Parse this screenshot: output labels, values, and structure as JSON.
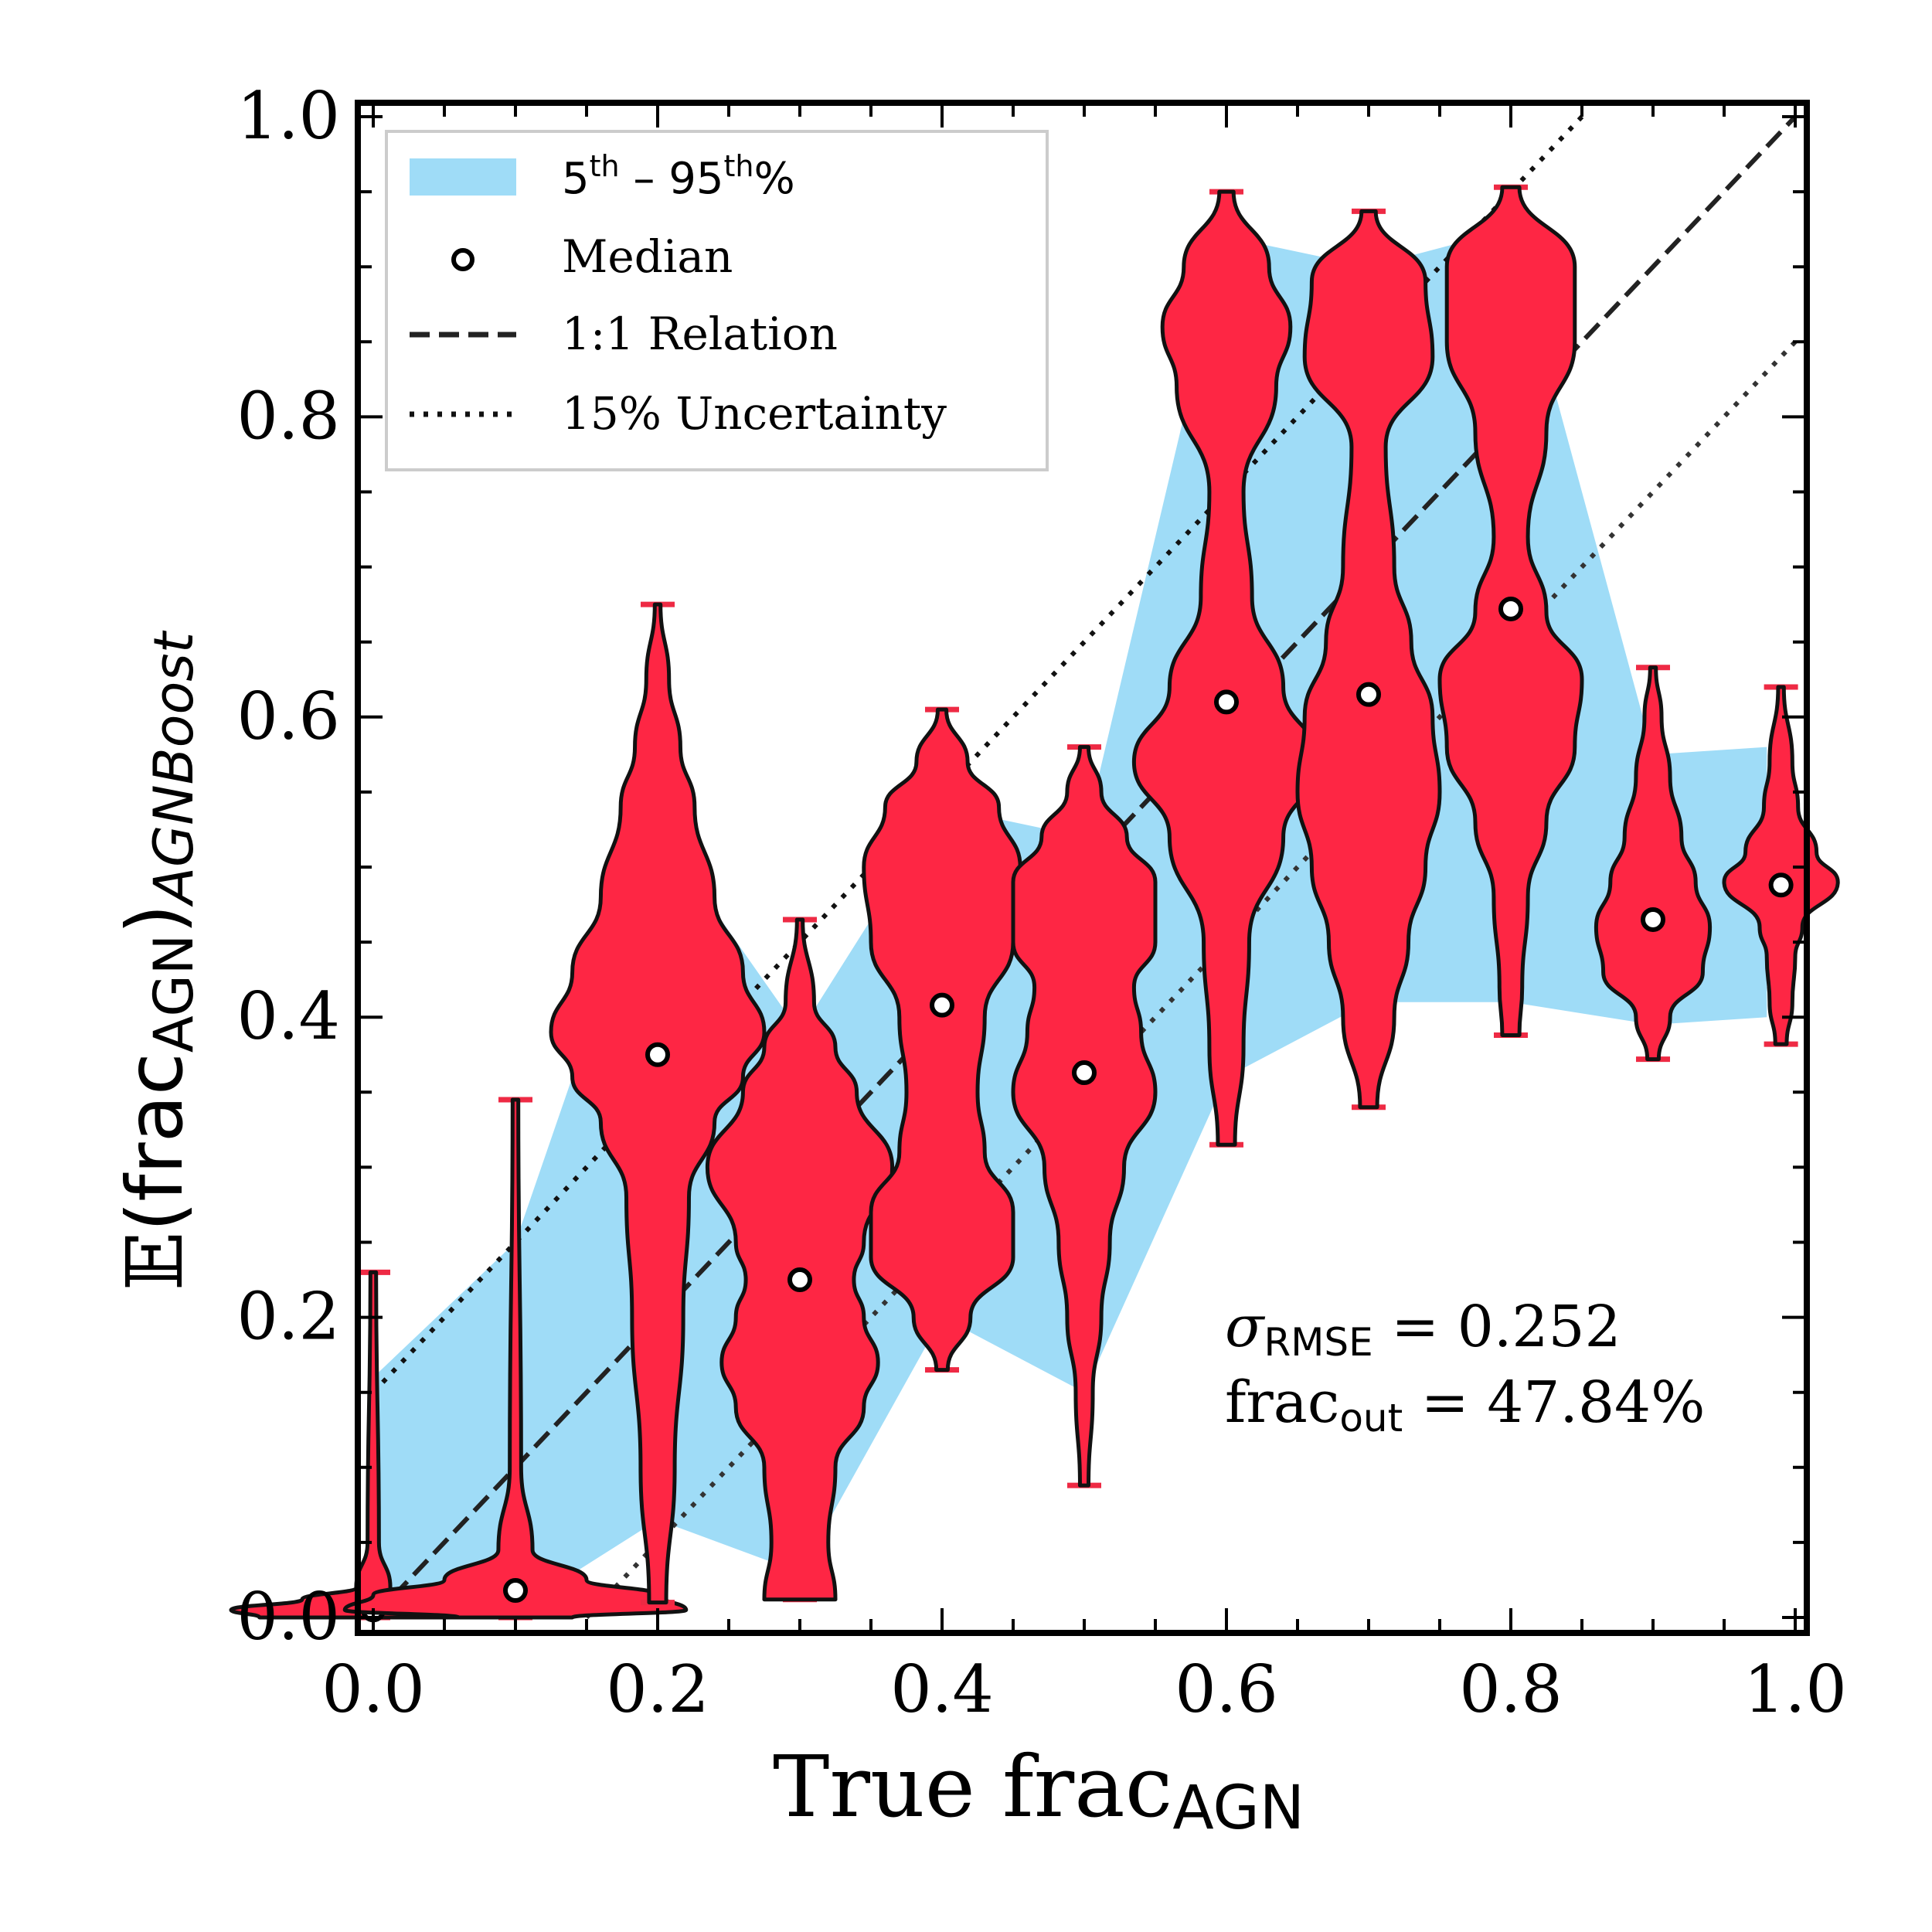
{
  "chart_data": {
    "type": "violin",
    "xlabel": {
      "main": "True frac",
      "sub": "AGN"
    },
    "ylabel": {
      "prefix": "𝔼",
      "open": "(frac",
      "sub1": "AGN",
      "close": ")",
      "sub2": "AGNBoost"
    },
    "xlim": [
      0.0,
      1.0
    ],
    "ylim": [
      0.0,
      1.0
    ],
    "x_ticks": [
      {
        "value": 0.0,
        "label": "0.0"
      },
      {
        "value": 0.2,
        "label": "0.2"
      },
      {
        "value": 0.4,
        "label": "0.4"
      },
      {
        "value": 0.6,
        "label": "0.6"
      },
      {
        "value": 0.8,
        "label": "0.8"
      },
      {
        "value": 1.0,
        "label": "1.0"
      }
    ],
    "y_ticks": [
      {
        "value": 0.0,
        "label": "0.0"
      },
      {
        "value": 0.2,
        "label": "0.2"
      },
      {
        "value": 0.4,
        "label": "0.4"
      },
      {
        "value": 0.6,
        "label": "0.6"
      },
      {
        "value": 0.8,
        "label": "0.8"
      },
      {
        "value": 1.0,
        "label": "1.0"
      }
    ],
    "legend": {
      "placement": "top-left",
      "band": {
        "base": "5",
        "sup1": "th",
        "mid": " – 95",
        "sup2": "th",
        "end": "%"
      },
      "median": "Median",
      "relation": "1:1 Relation",
      "uncertainty": "15% Uncertainty"
    },
    "band_5_95": {
      "x": [
        0.0,
        0.1,
        0.2,
        0.3,
        0.4,
        0.5,
        0.6,
        0.7,
        0.8,
        0.9,
        0.98
      ],
      "lower": [
        0.005,
        0.005,
        0.065,
        0.03,
        0.2,
        0.15,
        0.36,
        0.41,
        0.41,
        0.395,
        0.4
      ],
      "upper": [
        0.16,
        0.25,
        0.525,
        0.39,
        0.54,
        0.52,
        0.92,
        0.9,
        0.925,
        0.575,
        0.58
      ]
    },
    "violins": [
      {
        "x": 0.0,
        "min": 0.0,
        "max": 0.23,
        "median": 0.005,
        "shape": [
          [
            0.0,
            0.08
          ],
          [
            0.005,
            0.1
          ],
          [
            0.012,
            0.05
          ],
          [
            0.02,
            0.012
          ],
          [
            0.05,
            0.004
          ],
          [
            0.23,
            0.002
          ]
        ]
      },
      {
        "x": 0.1,
        "min": 0.0,
        "max": 0.345,
        "median": 0.018,
        "shape": [
          [
            0.0,
            0.04
          ],
          [
            0.005,
            0.12
          ],
          [
            0.015,
            0.1
          ],
          [
            0.025,
            0.05
          ],
          [
            0.045,
            0.012
          ],
          [
            0.1,
            0.004
          ],
          [
            0.345,
            0.002
          ]
        ]
      },
      {
        "x": 0.2,
        "min": 0.01,
        "max": 0.675,
        "median": 0.375,
        "shape": [
          [
            0.01,
            0.006
          ],
          [
            0.1,
            0.012
          ],
          [
            0.2,
            0.018
          ],
          [
            0.28,
            0.022
          ],
          [
            0.33,
            0.04
          ],
          [
            0.36,
            0.06
          ],
          [
            0.39,
            0.075
          ],
          [
            0.43,
            0.06
          ],
          [
            0.48,
            0.04
          ],
          [
            0.54,
            0.026
          ],
          [
            0.58,
            0.016
          ],
          [
            0.625,
            0.008
          ],
          [
            0.675,
            0.002
          ]
        ]
      },
      {
        "x": 0.3,
        "min": 0.012,
        "max": 0.465,
        "median": 0.225,
        "shape": [
          [
            0.012,
            0.025
          ],
          [
            0.05,
            0.02
          ],
          [
            0.1,
            0.025
          ],
          [
            0.14,
            0.045
          ],
          [
            0.17,
            0.055
          ],
          [
            0.2,
            0.045
          ],
          [
            0.225,
            0.038
          ],
          [
            0.25,
            0.045
          ],
          [
            0.3,
            0.065
          ],
          [
            0.35,
            0.04
          ],
          [
            0.38,
            0.025
          ],
          [
            0.41,
            0.01
          ],
          [
            0.465,
            0.002
          ]
        ]
      },
      {
        "x": 0.4,
        "min": 0.165,
        "max": 0.605,
        "median": 0.408,
        "shape": [
          [
            0.165,
            0.004
          ],
          [
            0.2,
            0.02
          ],
          [
            0.24,
            0.05
          ],
          [
            0.27,
            0.05
          ],
          [
            0.31,
            0.03
          ],
          [
            0.35,
            0.025
          ],
          [
            0.4,
            0.03
          ],
          [
            0.45,
            0.05
          ],
          [
            0.5,
            0.055
          ],
          [
            0.54,
            0.04
          ],
          [
            0.57,
            0.018
          ],
          [
            0.605,
            0.003
          ]
        ]
      },
      {
        "x": 0.5,
        "min": 0.088,
        "max": 0.58,
        "median": 0.363,
        "shape": [
          [
            0.088,
            0.003
          ],
          [
            0.15,
            0.006
          ],
          [
            0.2,
            0.012
          ],
          [
            0.25,
            0.018
          ],
          [
            0.3,
            0.028
          ],
          [
            0.35,
            0.05
          ],
          [
            0.39,
            0.04
          ],
          [
            0.42,
            0.035
          ],
          [
            0.45,
            0.05
          ],
          [
            0.49,
            0.05
          ],
          [
            0.52,
            0.03
          ],
          [
            0.55,
            0.012
          ],
          [
            0.58,
            0.003
          ]
        ]
      },
      {
        "x": 0.6,
        "min": 0.315,
        "max": 0.95,
        "median": 0.61,
        "shape": [
          [
            0.315,
            0.006
          ],
          [
            0.38,
            0.012
          ],
          [
            0.45,
            0.016
          ],
          [
            0.52,
            0.04
          ],
          [
            0.57,
            0.065
          ],
          [
            0.62,
            0.04
          ],
          [
            0.68,
            0.018
          ],
          [
            0.75,
            0.012
          ],
          [
            0.82,
            0.035
          ],
          [
            0.86,
            0.045
          ],
          [
            0.9,
            0.03
          ],
          [
            0.95,
            0.005
          ]
        ]
      },
      {
        "x": 0.7,
        "min": 0.34,
        "max": 0.937,
        "median": 0.615,
        "shape": [
          [
            0.34,
            0.006
          ],
          [
            0.4,
            0.018
          ],
          [
            0.45,
            0.028
          ],
          [
            0.5,
            0.04
          ],
          [
            0.55,
            0.05
          ],
          [
            0.6,
            0.045
          ],
          [
            0.65,
            0.03
          ],
          [
            0.7,
            0.018
          ],
          [
            0.78,
            0.012
          ],
          [
            0.84,
            0.045
          ],
          [
            0.89,
            0.04
          ],
          [
            0.937,
            0.005
          ]
        ]
      },
      {
        "x": 0.8,
        "min": 0.388,
        "max": 0.953,
        "median": 0.672,
        "shape": [
          [
            0.388,
            0.006
          ],
          [
            0.42,
            0.008
          ],
          [
            0.48,
            0.012
          ],
          [
            0.53,
            0.025
          ],
          [
            0.58,
            0.045
          ],
          [
            0.625,
            0.05
          ],
          [
            0.67,
            0.025
          ],
          [
            0.72,
            0.012
          ],
          [
            0.79,
            0.025
          ],
          [
            0.85,
            0.045
          ],
          [
            0.9,
            0.045
          ],
          [
            0.953,
            0.006
          ]
        ]
      },
      {
        "x": 0.9,
        "min": 0.372,
        "max": 0.633,
        "median": 0.465,
        "shape": [
          [
            0.372,
            0.004
          ],
          [
            0.4,
            0.012
          ],
          [
            0.43,
            0.035
          ],
          [
            0.46,
            0.04
          ],
          [
            0.49,
            0.03
          ],
          [
            0.52,
            0.02
          ],
          [
            0.56,
            0.012
          ],
          [
            0.6,
            0.006
          ],
          [
            0.633,
            0.002
          ]
        ]
      },
      {
        "x": 0.99,
        "min": 0.382,
        "max": 0.62,
        "median": 0.488,
        "shape": [
          [
            0.382,
            0.004
          ],
          [
            0.41,
            0.008
          ],
          [
            0.44,
            0.01
          ],
          [
            0.46,
            0.015
          ],
          [
            0.49,
            0.04
          ],
          [
            0.51,
            0.025
          ],
          [
            0.54,
            0.012
          ],
          [
            0.57,
            0.008
          ],
          [
            0.62,
            0.002
          ]
        ]
      }
    ],
    "annotations": {
      "rmse": {
        "symbol": "σ",
        "sub": "RMSE",
        "rest": " = 0.252"
      },
      "out": {
        "main": "frac",
        "sub": "out",
        "rest": " = 47.84%"
      }
    },
    "colors": {
      "violin_fill": "#fe2644",
      "violin_edge": "#111111",
      "band": "#9fdcf7",
      "cap": "#ee2a44",
      "line": "#222222"
    }
  }
}
